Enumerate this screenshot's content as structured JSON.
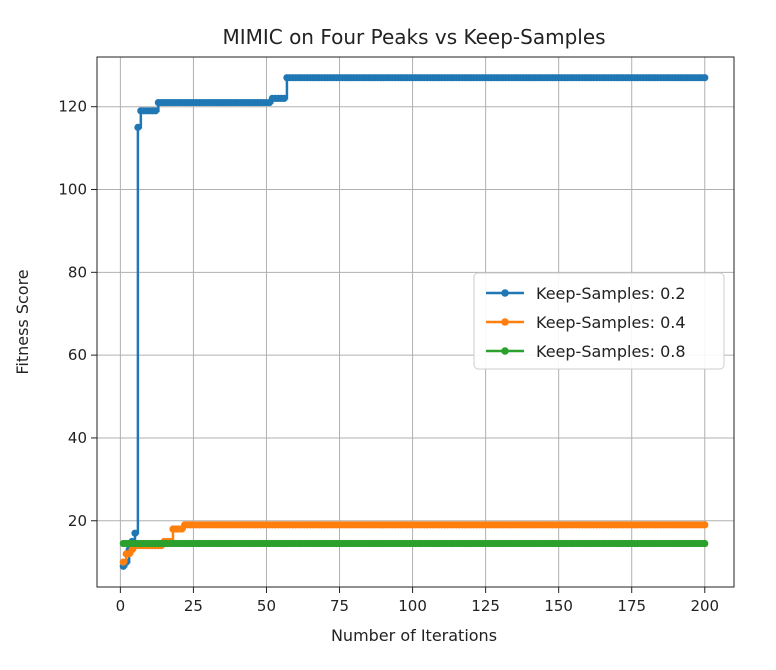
{
  "chart_data": {
    "type": "line",
    "title": "MIMIC on Four Peaks vs Keep-Samples",
    "xlabel": "Number of Iterations",
    "ylabel": "Fitness Score",
    "xlim": [
      -8,
      210
    ],
    "ylim": [
      4,
      132
    ],
    "xticks": [
      0,
      25,
      50,
      75,
      100,
      125,
      150,
      175,
      200
    ],
    "yticks": [
      20,
      40,
      60,
      80,
      100,
      120
    ],
    "grid": true,
    "legend": "center-right",
    "series": [
      {
        "name": "Keep-Samples: 0.2",
        "color": "#1f77b4",
        "steps": [
          [
            1,
            9
          ],
          [
            2,
            10
          ],
          [
            3,
            13
          ],
          [
            4,
            15
          ],
          [
            5,
            17
          ],
          [
            6,
            115
          ],
          [
            7,
            119
          ],
          [
            13,
            121
          ],
          [
            52,
            122
          ],
          [
            57,
            127
          ],
          [
            200,
            127
          ]
        ]
      },
      {
        "name": "Keep-Samples: 0.4",
        "color": "#ff7f0e",
        "steps": [
          [
            1,
            10
          ],
          [
            2,
            12
          ],
          [
            4,
            13
          ],
          [
            5,
            14
          ],
          [
            6,
            14
          ],
          [
            15,
            15
          ],
          [
            18,
            18
          ],
          [
            22,
            19
          ],
          [
            200,
            19
          ]
        ]
      },
      {
        "name": "Keep-Samples: 0.8",
        "color": "#2ca02c",
        "steps": [
          [
            1,
            14.5
          ],
          [
            200,
            14.5
          ]
        ]
      }
    ]
  }
}
